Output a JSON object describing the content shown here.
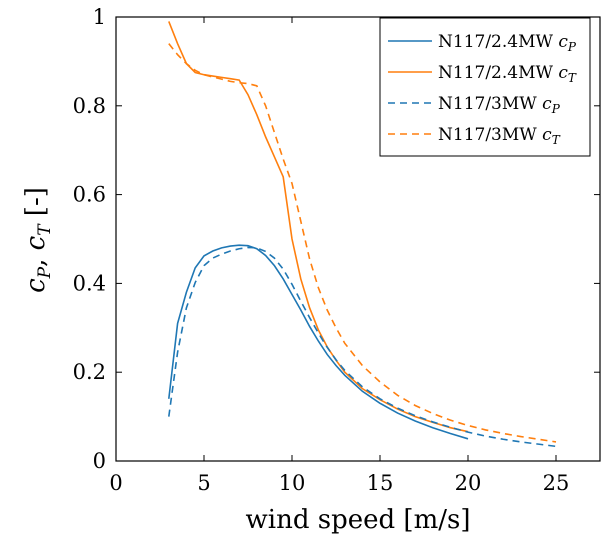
{
  "chart_data": {
    "type": "line",
    "xlabel": "wind speed [m/s]",
    "ylabel": "c_P, c_T [-]",
    "xlim": [
      0,
      27.5
    ],
    "ylim": [
      0,
      1
    ],
    "xticks": [
      0,
      5,
      10,
      15,
      20,
      25
    ],
    "xtick_labels": [
      "0",
      "5",
      "10",
      "15",
      "20",
      "25"
    ],
    "yticks": [
      0,
      0.2,
      0.4,
      0.6,
      0.8,
      1
    ],
    "ytick_labels": [
      "0",
      "0.2",
      "0.4",
      "0.6",
      "0.8",
      "1"
    ],
    "grid": false,
    "legend_position": "top-right",
    "series": [
      {
        "name": "N117/2.4MW c_P",
        "legend_main": "N117/2.4MW ",
        "legend_symbol": "c",
        "legend_sub": "P",
        "color": "#1f77b4",
        "dashed": false,
        "x": [
          3,
          3.5,
          4,
          4.5,
          5,
          5.5,
          6,
          6.5,
          7,
          7.5,
          8,
          8.5,
          9,
          9.5,
          10,
          10.5,
          11,
          11.5,
          12,
          12.5,
          13,
          14,
          15,
          16,
          17,
          18,
          19,
          20
        ],
        "y": [
          0.14,
          0.31,
          0.38,
          0.435,
          0.462,
          0.473,
          0.48,
          0.484,
          0.486,
          0.485,
          0.478,
          0.463,
          0.44,
          0.41,
          0.375,
          0.34,
          0.303,
          0.27,
          0.24,
          0.215,
          0.193,
          0.157,
          0.13,
          0.108,
          0.09,
          0.075,
          0.062,
          0.05
        ]
      },
      {
        "name": "N117/2.4MW c_T",
        "legend_main": "N117/2.4MW ",
        "legend_symbol": "c",
        "legend_sub": "T",
        "color": "#ff7f0e",
        "dashed": false,
        "x": [
          3,
          3.5,
          4,
          4.5,
          5,
          5.5,
          6,
          6.5,
          7,
          7.5,
          8,
          8.5,
          9,
          9.5,
          10,
          10.5,
          11,
          11.5,
          12,
          12.5,
          13,
          14,
          15,
          16,
          17,
          18,
          19,
          20
        ],
        "y": [
          0.99,
          0.94,
          0.895,
          0.875,
          0.87,
          0.867,
          0.864,
          0.861,
          0.858,
          0.825,
          0.78,
          0.73,
          0.685,
          0.64,
          0.5,
          0.41,
          0.345,
          0.295,
          0.257,
          0.227,
          0.2,
          0.163,
          0.138,
          0.117,
          0.1,
          0.087,
          0.075,
          0.066
        ]
      },
      {
        "name": "N117/3MW c_P",
        "legend_main": "N117/3MW ",
        "legend_symbol": "c",
        "legend_sub": "P",
        "color": "#1f77b4",
        "dashed": true,
        "x": [
          3,
          3.5,
          4,
          4.5,
          5,
          5.5,
          6,
          6.5,
          7,
          7.5,
          8,
          8.5,
          9,
          9.5,
          10,
          10.5,
          11,
          11.5,
          12,
          12.5,
          13,
          14,
          15,
          16,
          17,
          18,
          19,
          20,
          21,
          22,
          23,
          24,
          25
        ],
        "y": [
          0.1,
          0.245,
          0.345,
          0.402,
          0.44,
          0.457,
          0.466,
          0.473,
          0.478,
          0.481,
          0.48,
          0.472,
          0.457,
          0.432,
          0.398,
          0.36,
          0.323,
          0.288,
          0.256,
          0.228,
          0.204,
          0.167,
          0.14,
          0.119,
          0.102,
          0.088,
          0.076,
          0.065,
          0.056,
          0.049,
          0.043,
          0.038,
          0.033
        ]
      },
      {
        "name": "N117/3MW c_T",
        "legend_main": "N117/3MW ",
        "legend_symbol": "c",
        "legend_sub": "T",
        "color": "#ff7f0e",
        "dashed": true,
        "x": [
          3,
          3.5,
          4,
          4.5,
          5,
          5.5,
          6,
          6.5,
          7,
          7.5,
          8,
          8.5,
          9,
          9.5,
          10,
          10.5,
          11,
          11.5,
          12,
          12.5,
          13,
          14,
          15,
          16,
          17,
          18,
          19,
          20,
          21,
          22,
          23,
          24,
          25
        ],
        "y": [
          0.94,
          0.915,
          0.895,
          0.88,
          0.87,
          0.865,
          0.86,
          0.855,
          0.852,
          0.85,
          0.845,
          0.8,
          0.74,
          0.68,
          0.625,
          0.54,
          0.455,
          0.39,
          0.34,
          0.3,
          0.265,
          0.215,
          0.178,
          0.148,
          0.125,
          0.107,
          0.092,
          0.08,
          0.07,
          0.062,
          0.055,
          0.049,
          0.043
        ]
      }
    ]
  }
}
